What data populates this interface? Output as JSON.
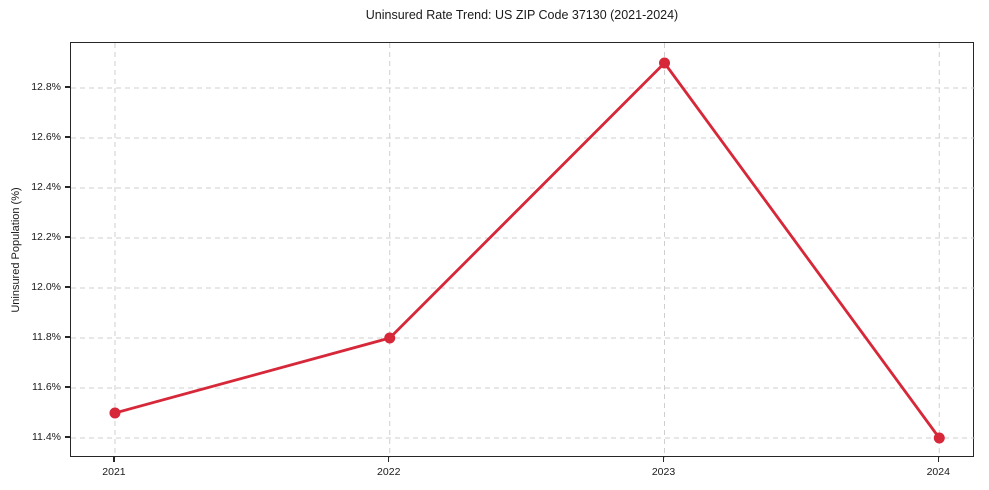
{
  "chart_data": {
    "type": "line",
    "title": "Uninsured Rate Trend: US ZIP Code 37130 (2021-2024)",
    "xlabel": "",
    "ylabel": "Uninsured Population (%)",
    "x": [
      2021,
      2022,
      2023,
      2024
    ],
    "xtick_labels": [
      "2021",
      "2022",
      "2023",
      "2024"
    ],
    "values": [
      11.5,
      11.8,
      12.9,
      11.4
    ],
    "ytick_values": [
      11.4,
      11.6,
      11.8,
      12.0,
      12.2,
      12.4,
      12.6,
      12.8
    ],
    "ytick_labels": [
      "11.4%",
      "11.6%",
      "11.8%",
      "12.0%",
      "12.2%",
      "12.4%",
      "12.6%",
      "12.8%"
    ],
    "xlim": [
      2020.84,
      2024.13
    ],
    "ylim": [
      11.32,
      12.98
    ],
    "grid": true,
    "legend": false,
    "colors": {
      "line": "#d62839",
      "marker": "#d62839",
      "gridline": "#cfcfcf",
      "spine": "#262626",
      "text": "#1a1a1a",
      "background": "#ffffff"
    }
  }
}
